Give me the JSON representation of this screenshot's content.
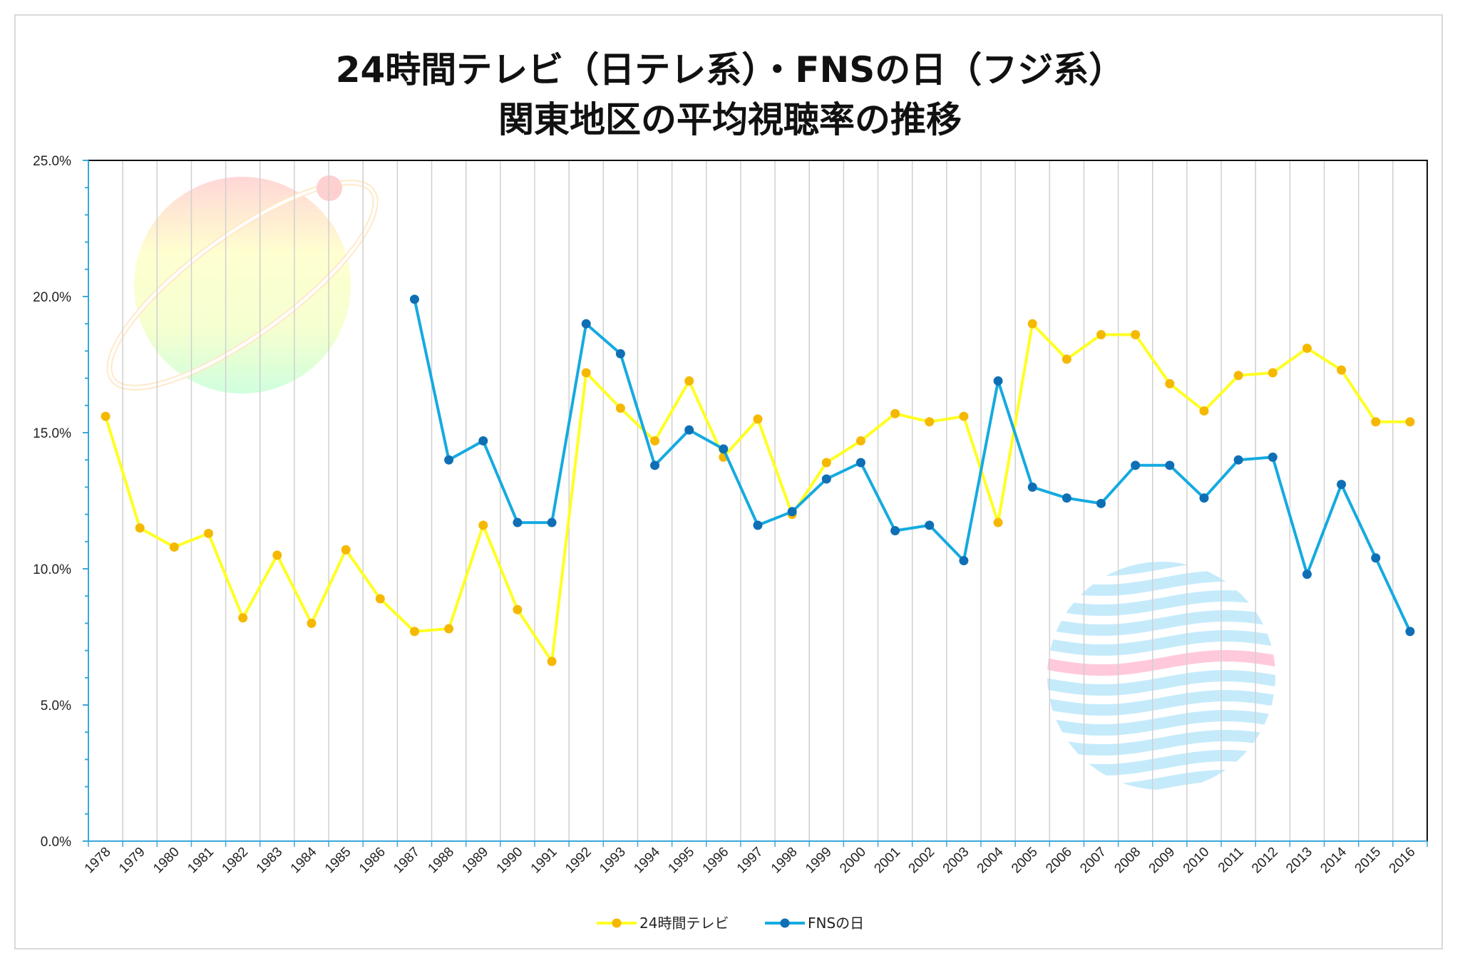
{
  "chart_data": {
    "type": "line",
    "title_line1": "24時間テレビ（日テレ系）・FNSの日（フジ系）",
    "title_line2": "関東地区の平均視聴率の推移",
    "xlabel": "",
    "ylabel": "",
    "ylim": [
      0,
      25
    ],
    "yticks": [
      "0.0%",
      "5.0%",
      "10.0%",
      "15.0%",
      "20.0%",
      "25.0%"
    ],
    "grid": "vertical",
    "legend_position": "bottom",
    "categories": [
      "1978",
      "1979",
      "1980",
      "1981",
      "1982",
      "1983",
      "1984",
      "1985",
      "1986",
      "1987",
      "1988",
      "1989",
      "1990",
      "1991",
      "1992",
      "1993",
      "1994",
      "1995",
      "1996",
      "1997",
      "1998",
      "1999",
      "2000",
      "2001",
      "2002",
      "2003",
      "2004",
      "2005",
      "2006",
      "2007",
      "2008",
      "2009",
      "2010",
      "2011",
      "2012",
      "2013",
      "2014",
      "2015",
      "2016"
    ],
    "series": [
      {
        "name": "24時間テレビ",
        "line_color": "#ffff22",
        "marker_color": "#f5b800",
        "values": [
          15.6,
          11.5,
          10.8,
          11.3,
          8.2,
          10.5,
          8.0,
          10.7,
          8.9,
          7.7,
          7.8,
          11.6,
          8.5,
          6.6,
          17.2,
          15.9,
          14.7,
          16.9,
          14.1,
          15.5,
          12.0,
          13.9,
          14.7,
          15.7,
          15.4,
          15.6,
          11.7,
          19.0,
          17.7,
          18.6,
          18.6,
          16.8,
          15.8,
          17.1,
          17.2,
          18.1,
          17.3,
          15.4,
          15.4
        ]
      },
      {
        "name": "FNSの日",
        "line_color": "#15aae0",
        "marker_color": "#0f6fb5",
        "values": [
          null,
          null,
          null,
          null,
          null,
          null,
          null,
          null,
          null,
          19.9,
          14.0,
          14.7,
          11.7,
          11.7,
          19.0,
          17.9,
          13.8,
          15.1,
          14.4,
          11.6,
          12.1,
          13.3,
          13.9,
          11.4,
          11.6,
          10.3,
          16.9,
          13.0,
          12.6,
          12.4,
          13.8,
          13.8,
          12.6,
          14.0,
          14.1,
          9.8,
          13.1,
          10.4,
          7.7
        ]
      }
    ]
  }
}
